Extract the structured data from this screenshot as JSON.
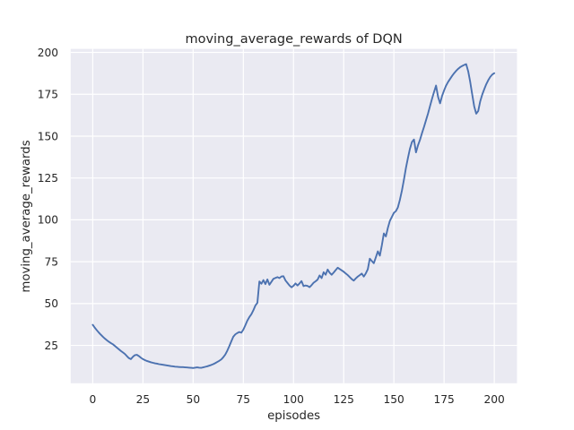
{
  "chart_data": {
    "type": "line",
    "title": "moving_average_rewards of DQN",
    "xlabel": "episodes",
    "ylabel": "moving_average_rewards",
    "xlim": [
      -11,
      211.3
    ],
    "ylim": [
      2.4,
      202.1
    ],
    "xticks": [
      0,
      25,
      50,
      75,
      100,
      125,
      150,
      175,
      200
    ],
    "yticks": [
      25,
      50,
      75,
      100,
      125,
      150,
      175,
      200
    ],
    "grid": true,
    "legend_position": "none",
    "style": {
      "figure_bg": "#FFFFFF",
      "plot_bg": "#EAEAF2",
      "grid_color": "#FFFFFF",
      "line_color": "#4C72B0",
      "text_color": "#262626"
    },
    "series": [
      {
        "name": "DQN moving_average_rewards",
        "x_start": 0,
        "x_step": 1,
        "y": [
          37.3,
          35.6,
          34.1,
          32.7,
          31.4,
          30.2,
          29.1,
          28.1,
          27.2,
          26.4,
          25.7,
          24.7,
          23.7,
          22.7,
          21.7,
          20.8,
          19.9,
          18.6,
          17.4,
          16.8,
          18.2,
          19.2,
          19.4,
          18.6,
          17.6,
          16.8,
          16.2,
          15.7,
          15.3,
          14.9,
          14.6,
          14.3,
          14.1,
          13.8,
          13.6,
          13.4,
          13.2,
          13.0,
          12.8,
          12.6,
          12.5,
          12.3,
          12.2,
          12.1,
          12.0,
          12.0,
          11.9,
          11.8,
          11.7,
          11.6,
          11.5,
          11.7,
          11.9,
          11.7,
          11.6,
          11.9,
          12.2,
          12.5,
          12.9,
          13.3,
          13.8,
          14.4,
          15.1,
          15.8,
          16.6,
          17.9,
          19.5,
          21.8,
          24.5,
          27.4,
          30.2,
          31.6,
          32.4,
          33.0,
          32.6,
          34.4,
          37.0,
          39.8,
          41.9,
          43.6,
          46.0,
          48.8,
          50.4,
          63.2,
          61.8,
          64.0,
          61.6,
          64.4,
          61.2,
          63.0,
          64.8,
          65.3,
          65.8,
          65.2,
          66.2,
          66.3,
          63.8,
          62.3,
          60.8,
          59.7,
          60.6,
          62.0,
          60.8,
          62.0,
          63.4,
          60.4,
          60.8,
          60.5,
          59.8,
          61.0,
          62.4,
          63.3,
          64.3,
          66.8,
          65.2,
          68.7,
          67.2,
          70.3,
          68.4,
          67.2,
          68.5,
          70.0,
          71.4,
          70.6,
          69.8,
          69.0,
          68.0,
          67.0,
          65.8,
          64.6,
          63.7,
          65.0,
          66.1,
          67.0,
          67.9,
          66.1,
          68.0,
          70.5,
          76.8,
          75.4,
          74.1,
          77.6,
          81.2,
          78.6,
          84.8,
          91.9,
          90.1,
          95.2,
          99.4,
          101.8,
          104.2,
          105.2,
          107.5,
          112.0,
          117.5,
          124.0,
          131.0,
          137.0,
          142.5,
          146.5,
          148.0,
          140.3,
          144.5,
          147.8,
          151.8,
          155.5,
          159.5,
          163.5,
          168.0,
          172.3,
          176.4,
          180.2,
          173.5,
          169.6,
          174.0,
          177.3,
          180.2,
          182.4,
          184.2,
          186.0,
          187.6,
          189.0,
          190.2,
          191.2,
          191.9,
          192.5,
          193.0,
          188.8,
          182.5,
          175.0,
          167.8,
          163.4,
          165.0,
          170.8,
          174.8,
          178.0,
          181.0,
          183.4,
          185.4,
          186.8,
          187.6
        ]
      }
    ]
  }
}
